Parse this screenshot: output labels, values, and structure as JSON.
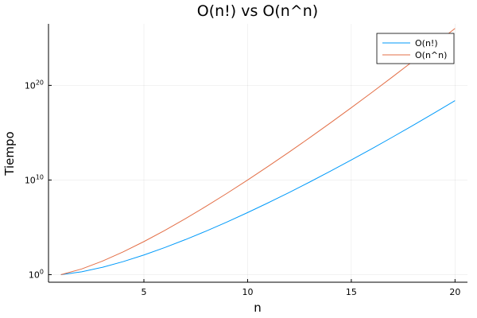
{
  "chart_data": {
    "type": "line",
    "title": "O(n!) vs O(n^n)",
    "xlabel": "n",
    "ylabel": "Tiempo",
    "xlim": [
      0.4,
      20.6
    ],
    "ylim_log10": [
      -0.8,
      26.5
    ],
    "yscale": "log10",
    "xticks": [
      5,
      10,
      15,
      20
    ],
    "yticks": [
      {
        "base": "10",
        "exp": "0",
        "log10_value": 0
      },
      {
        "base": "10",
        "exp": "10",
        "log10_value": 10
      },
      {
        "base": "10",
        "exp": "20",
        "log10_value": 20
      }
    ],
    "grid": true,
    "legend_position": "top-right",
    "x": [
      1,
      2,
      3,
      4,
      5,
      6,
      7,
      8,
      9,
      10,
      11,
      12,
      13,
      14,
      15,
      16,
      17,
      18,
      19,
      20
    ],
    "series": [
      {
        "name": "O(n!)",
        "color": "#009AFA",
        "values": [
          1,
          2,
          6,
          24,
          120,
          720,
          5040,
          40320,
          362880,
          3628800,
          39916800,
          479001600,
          6227020800,
          87178291200,
          1307674368000,
          20922789888000,
          355687428096000,
          6402373705728000,
          121645100408832000,
          2432902008176640000
        ]
      },
      {
        "name": "O(n^n)",
        "color": "#E36F47",
        "values": [
          1,
          4,
          27,
          256,
          3125,
          46656,
          823543,
          16777216,
          387420489,
          10000000000,
          285311670611,
          8916100448256,
          302875106592253,
          11112006825558016,
          437893890380859375,
          18446744073709551616,
          827240261886336764177,
          39346408075296537575424,
          1978419655660313589123979,
          104857600000000000000000000
        ]
      }
    ]
  }
}
